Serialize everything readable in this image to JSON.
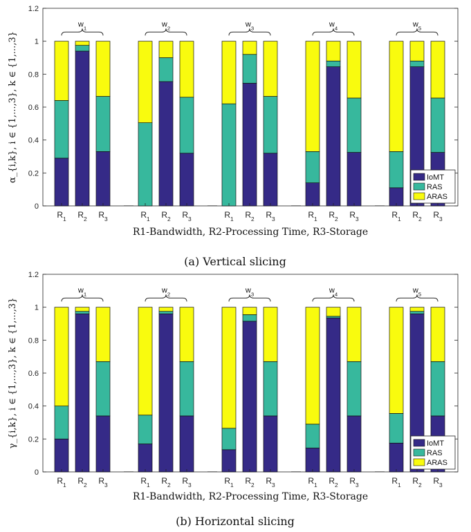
{
  "chart_data": [
    {
      "type": "bar",
      "stacked": true,
      "caption": "(a) Vertical slicing",
      "xlabel": "R1-Bandwidth, R2-Processing Time, R3-Storage",
      "ylabel": "α_{i,k}, i ∈ {1,...,3}, k ∈ {1,...,3}",
      "ylim": [
        0,
        1.2
      ],
      "yticks": [
        "0",
        "0.2",
        "0.4",
        "0.6",
        "0.8",
        "1",
        "1.2"
      ],
      "groups": [
        "w1",
        "w2",
        "w3",
        "w4",
        "w5"
      ],
      "categories": [
        "R1",
        "R2",
        "R3"
      ],
      "legend_position": "bottom-right",
      "grid": false,
      "series": [
        {
          "name": "IoMT",
          "color": "#352a87",
          "values": [
            [
              0.29,
              0.94,
              0.33
            ],
            [
              0.0,
              0.755,
              0.32
            ],
            [
              0.0,
              0.745,
              0.32
            ],
            [
              0.14,
              0.845,
              0.325
            ],
            [
              0.11,
              0.845,
              0.325
            ]
          ]
        },
        {
          "name": "RAS",
          "color": "#37b89d",
          "values": [
            [
              0.35,
              0.035,
              0.335
            ],
            [
              0.505,
              0.145,
              0.34
            ],
            [
              0.62,
              0.175,
              0.345
            ],
            [
              0.19,
              0.035,
              0.33
            ],
            [
              0.22,
              0.035,
              0.33
            ]
          ]
        },
        {
          "name": "ARAS",
          "color": "#f9fb0e",
          "values": [
            [
              0.36,
              0.025,
              0.335
            ],
            [
              0.495,
              0.1,
              0.34
            ],
            [
              0.38,
              0.08,
              0.335
            ],
            [
              0.67,
              0.12,
              0.345
            ],
            [
              0.67,
              0.12,
              0.345
            ]
          ]
        }
      ]
    },
    {
      "type": "bar",
      "stacked": true,
      "caption": "(b) Horizontal slicing",
      "xlabel": "R1-Bandwidth, R2-Processing Time, R3-Storage",
      "ylabel": "γ_{i,k}, i ∈ {1,...,3}, k ∈ {1,...,3}",
      "ylim": [
        0,
        1.2
      ],
      "yticks": [
        "0",
        "0.2",
        "0.4",
        "0.6",
        "0.8",
        "1",
        "1.2"
      ],
      "groups": [
        "w1",
        "w2",
        "w3",
        "w4",
        "w5"
      ],
      "categories": [
        "R1",
        "R2",
        "R3"
      ],
      "legend_position": "bottom-right",
      "grid": false,
      "series": [
        {
          "name": "IoMT",
          "color": "#352a87",
          "values": [
            [
              0.2,
              0.96,
              0.34
            ],
            [
              0.17,
              0.96,
              0.34
            ],
            [
              0.135,
              0.915,
              0.34
            ],
            [
              0.145,
              0.935,
              0.34
            ],
            [
              0.175,
              0.96,
              0.34
            ]
          ]
        },
        {
          "name": "RAS",
          "color": "#37b89d",
          "values": [
            [
              0.2,
              0.015,
              0.33
            ],
            [
              0.175,
              0.015,
              0.33
            ],
            [
              0.13,
              0.04,
              0.33
            ],
            [
              0.145,
              0.01,
              0.33
            ],
            [
              0.18,
              0.015,
              0.33
            ]
          ]
        },
        {
          "name": "ARAS",
          "color": "#f9fb0e",
          "values": [
            [
              0.6,
              0.025,
              0.33
            ],
            [
              0.655,
              0.025,
              0.33
            ],
            [
              0.735,
              0.045,
              0.33
            ],
            [
              0.71,
              0.055,
              0.33
            ],
            [
              0.645,
              0.025,
              0.33
            ]
          ]
        }
      ]
    }
  ]
}
